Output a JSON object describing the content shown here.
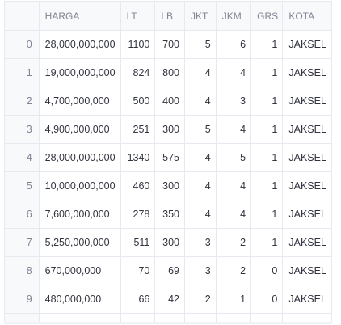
{
  "table": {
    "columns": [
      "",
      "HARGA",
      "LT",
      "LB",
      "JKT",
      "JKM",
      "GRS",
      "KOTA"
    ],
    "rows": [
      [
        "0",
        "28,000,000,000",
        "1100",
        "700",
        "5",
        "6",
        "1",
        "JAKSEL"
      ],
      [
        "1",
        "19,000,000,000",
        "824",
        "800",
        "4",
        "4",
        "1",
        "JAKSEL"
      ],
      [
        "2",
        "4,700,000,000",
        "500",
        "400",
        "4",
        "3",
        "1",
        "JAKSEL"
      ],
      [
        "3",
        "4,900,000,000",
        "251",
        "300",
        "5",
        "4",
        "1",
        "JAKSEL"
      ],
      [
        "4",
        "28,000,000,000",
        "1340",
        "575",
        "4",
        "5",
        "1",
        "JAKSEL"
      ],
      [
        "5",
        "10,000,000,000",
        "460",
        "300",
        "4",
        "4",
        "1",
        "JAKSEL"
      ],
      [
        "6",
        "7,600,000,000",
        "278",
        "350",
        "4",
        "4",
        "1",
        "JAKSEL"
      ],
      [
        "7",
        "5,250,000,000",
        "511",
        "300",
        "3",
        "2",
        "1",
        "JAKSEL"
      ],
      [
        "8",
        "670,000,000",
        "70",
        "69",
        "3",
        "2",
        "0",
        "JAKSEL"
      ],
      [
        "9",
        "480,000,000",
        "66",
        "42",
        "2",
        "1",
        "0",
        "JAKSEL"
      ]
    ]
  }
}
